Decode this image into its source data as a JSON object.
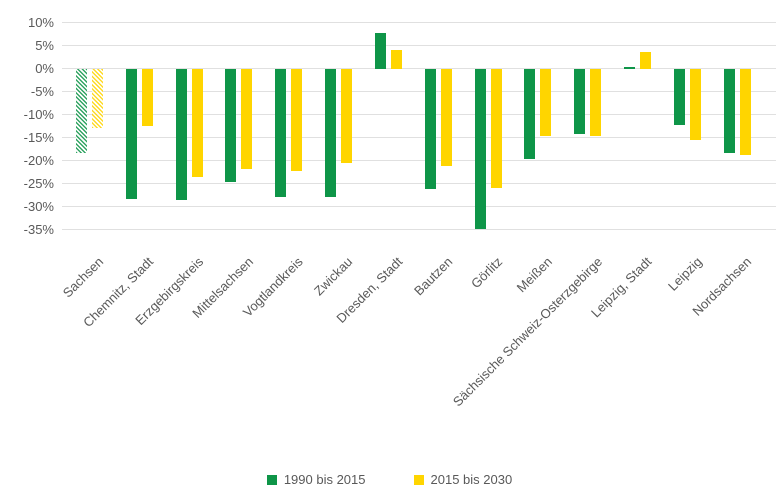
{
  "chart_data": {
    "type": "bar",
    "title": "",
    "xlabel": "",
    "ylabel": "",
    "categories": [
      "Sachsen",
      "Chemnitz, Stadt",
      "Erzgebirgskreis",
      "Mittelsachsen",
      "Vogtlandkreis",
      "Zwickau",
      "Dresden, Stadt",
      "Bautzen",
      "Görlitz",
      "Meißen",
      "Sächsische Schweiz-Osterzgebirge",
      "Leipzig, Stadt",
      "Leipzig",
      "Nordsachsen"
    ],
    "series": [
      {
        "name": "1990 bis 2015",
        "color": "#0E9548",
        "values": [
          -18.4,
          -28.3,
          -28.5,
          -24.6,
          -28.0,
          -27.9,
          7.7,
          -26.2,
          -34.8,
          -19.6,
          -14.3,
          0.4,
          -12.2,
          -18.4
        ]
      },
      {
        "name": "2015 bis 2030",
        "color": "#FFD500",
        "values": [
          -12.9,
          -12.4,
          -23.6,
          -21.8,
          -22.3,
          -20.5,
          4.1,
          -21.1,
          -25.9,
          -14.6,
          -14.6,
          3.6,
          -15.5,
          -18.8
        ]
      }
    ],
    "hatched_category_index": 0,
    "y_ticks": [
      10,
      5,
      0,
      -5,
      -10,
      -15,
      -20,
      -25,
      -30,
      -35
    ],
    "y_tick_labels": [
      "10%",
      "5%",
      "0%",
      "-5%",
      "-10%",
      "-15%",
      "-20%",
      "-25%",
      "-30%",
      "-35%"
    ],
    "ylim": [
      -35,
      10
    ],
    "grid": true,
    "legend_position": "bottom"
  },
  "colors": {
    "series1": "#0E9548",
    "series2": "#FFD500",
    "gridline": "#e0e0e0",
    "text": "#595959",
    "background": "#ffffff"
  }
}
